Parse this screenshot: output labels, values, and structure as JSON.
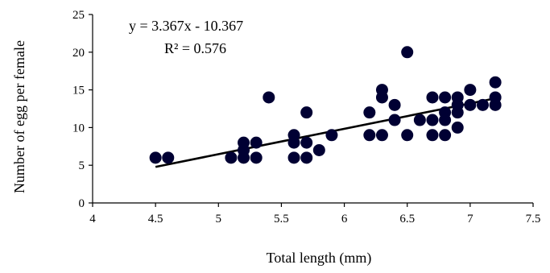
{
  "chart_data": {
    "type": "scatter",
    "title": "",
    "xlabel": "Total length (mm)",
    "ylabel": "Number of egg per female",
    "xlim": [
      4,
      7.5
    ],
    "ylim": [
      0,
      25
    ],
    "xticks": [
      "4",
      "4.5",
      "5",
      "5.5",
      "6",
      "6.5",
      "7",
      "7.5"
    ],
    "yticks": [
      "0",
      "5",
      "10",
      "15",
      "20",
      "25"
    ],
    "grid": false,
    "legend": "none",
    "point_color": "#000033",
    "points": [
      {
        "x": 4.5,
        "y": 6
      },
      {
        "x": 4.6,
        "y": 6
      },
      {
        "x": 5.1,
        "y": 6
      },
      {
        "x": 5.2,
        "y": 6
      },
      {
        "x": 5.2,
        "y": 7
      },
      {
        "x": 5.2,
        "y": 8
      },
      {
        "x": 5.3,
        "y": 6
      },
      {
        "x": 5.3,
        "y": 8
      },
      {
        "x": 5.4,
        "y": 14
      },
      {
        "x": 5.6,
        "y": 6
      },
      {
        "x": 5.6,
        "y": 8
      },
      {
        "x": 5.6,
        "y": 9
      },
      {
        "x": 5.7,
        "y": 6
      },
      {
        "x": 5.7,
        "y": 8
      },
      {
        "x": 5.7,
        "y": 12
      },
      {
        "x": 5.8,
        "y": 7
      },
      {
        "x": 5.9,
        "y": 9
      },
      {
        "x": 6.2,
        "y": 9
      },
      {
        "x": 6.2,
        "y": 12
      },
      {
        "x": 6.3,
        "y": 9
      },
      {
        "x": 6.3,
        "y": 14
      },
      {
        "x": 6.3,
        "y": 15
      },
      {
        "x": 6.4,
        "y": 11
      },
      {
        "x": 6.4,
        "y": 13
      },
      {
        "x": 6.5,
        "y": 9
      },
      {
        "x": 6.5,
        "y": 20
      },
      {
        "x": 6.6,
        "y": 11
      },
      {
        "x": 6.7,
        "y": 9
      },
      {
        "x": 6.7,
        "y": 11
      },
      {
        "x": 6.7,
        "y": 14
      },
      {
        "x": 6.8,
        "y": 9
      },
      {
        "x": 6.8,
        "y": 11
      },
      {
        "x": 6.8,
        "y": 12
      },
      {
        "x": 6.8,
        "y": 14
      },
      {
        "x": 6.9,
        "y": 10
      },
      {
        "x": 6.9,
        "y": 12
      },
      {
        "x": 6.9,
        "y": 13
      },
      {
        "x": 6.9,
        "y": 14
      },
      {
        "x": 7.0,
        "y": 13
      },
      {
        "x": 7.0,
        "y": 15
      },
      {
        "x": 7.1,
        "y": 13
      },
      {
        "x": 7.2,
        "y": 13
      },
      {
        "x": 7.2,
        "y": 14
      },
      {
        "x": 7.2,
        "y": 16
      }
    ],
    "trendline": {
      "slope": 3.367,
      "intercept": -10.367,
      "x_range": [
        4.5,
        7.2
      ],
      "equation": "y = 3.367x - 10.367",
      "r_squared": "R² = 0.576"
    }
  }
}
